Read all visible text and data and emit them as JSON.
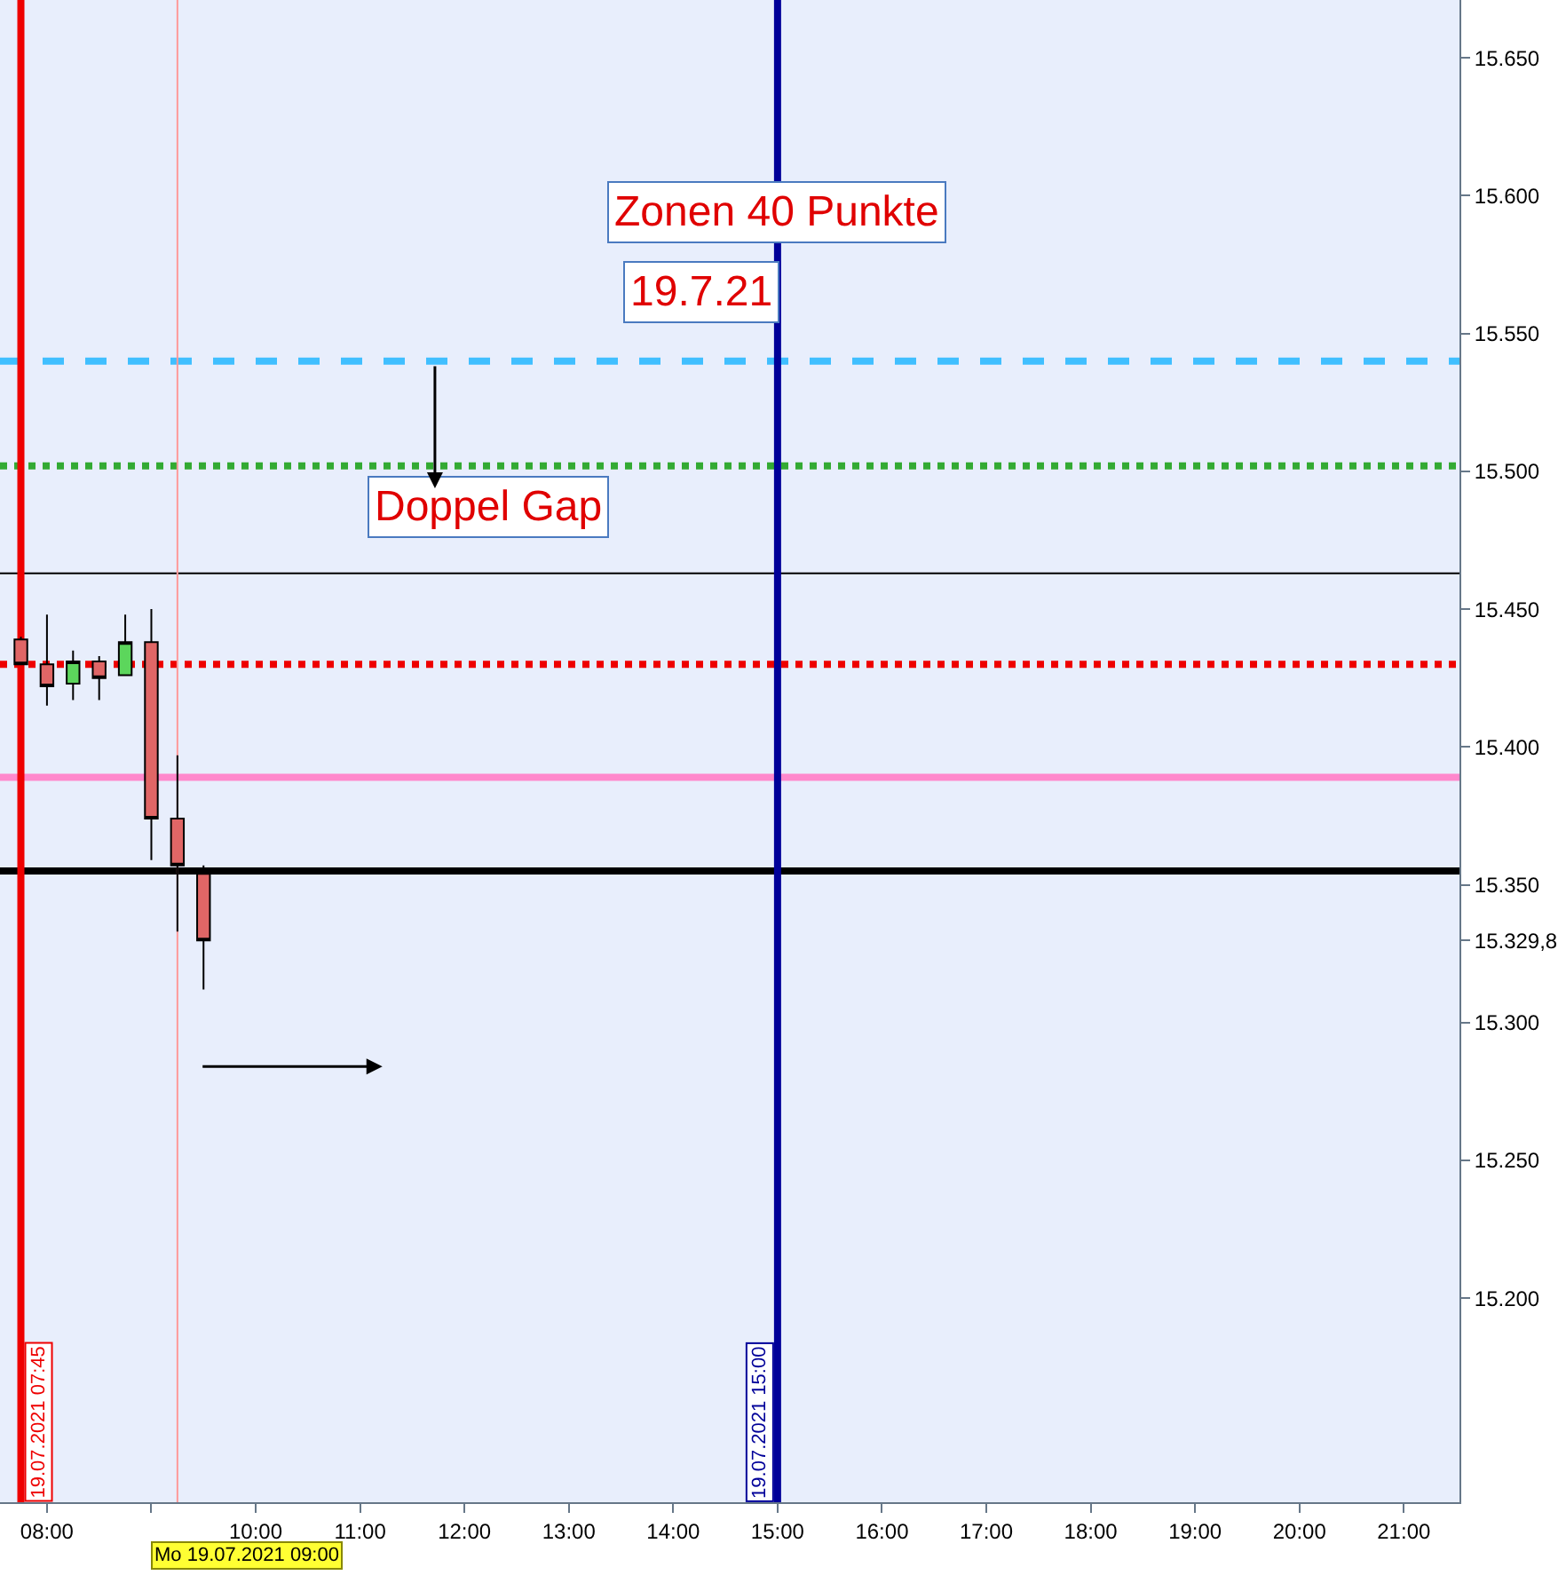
{
  "chart_data": {
    "type": "candlestick",
    "x": [
      "2021-07-19T07:45",
      "2021-07-19T08:00",
      "2021-07-19T08:15",
      "2021-07-19T08:30",
      "2021-07-19T08:45",
      "2021-07-19T09:00",
      "2021-07-19T09:15",
      "2021-07-19T09:30"
    ],
    "ohlc": [
      [
        15439,
        15440,
        15430,
        15430
      ],
      [
        15430,
        15448,
        15415,
        15422
      ],
      [
        15423,
        15435,
        15417,
        15431
      ],
      [
        15431,
        15433,
        15417,
        15425
      ],
      [
        15426,
        15448,
        15426,
        15438
      ],
      [
        15438,
        15450,
        15359,
        15374
      ],
      [
        15374,
        15397,
        15333,
        15357
      ],
      [
        15354,
        15357,
        15312,
        15329.8
      ]
    ],
    "colors": [
      "#e06666",
      "#e06666",
      "#5cd65c",
      "#e06666",
      "#5cd65c",
      "#e06666",
      "#e06666",
      "#e06666"
    ],
    "xlim": [
      "2021-07-19T07:33",
      "2021-07-19T21:32"
    ],
    "xticks": [
      {
        "value": "2021-07-19T08:00",
        "label": "08:00"
      },
      {
        "value": "2021-07-19T09:00",
        "label": null
      },
      {
        "value": "2021-07-19T10:00",
        "label": "10:00"
      },
      {
        "value": "2021-07-19T11:00",
        "label": "11:00"
      },
      {
        "value": "2021-07-19T12:00",
        "label": "12:00"
      },
      {
        "value": "2021-07-19T13:00",
        "label": "13:00"
      },
      {
        "value": "2021-07-19T14:00",
        "label": "14:00"
      },
      {
        "value": "2021-07-19T15:00",
        "label": "15:00"
      },
      {
        "value": "2021-07-19T16:00",
        "label": "16:00"
      },
      {
        "value": "2021-07-19T17:00",
        "label": "17:00"
      },
      {
        "value": "2021-07-19T18:00",
        "label": "18:00"
      },
      {
        "value": "2021-07-19T19:00",
        "label": "19:00"
      },
      {
        "value": "2021-07-19T20:00",
        "label": "20:00"
      },
      {
        "value": "2021-07-19T21:00",
        "label": "21:00"
      }
    ],
    "ylim": [
      15126,
      15671
    ],
    "yticks": [
      {
        "value": 15200,
        "label": "15.200"
      },
      {
        "value": 15250,
        "label": "15.250"
      },
      {
        "value": 15300,
        "label": "15.300"
      },
      {
        "value": 15329.8,
        "label": "15.329,8"
      },
      {
        "value": 15350,
        "label": "15.350"
      },
      {
        "value": 15400,
        "label": "15.400"
      },
      {
        "value": 15450,
        "label": "15.450"
      },
      {
        "value": 15500,
        "label": "15.500"
      },
      {
        "value": 15550,
        "label": "15.550"
      },
      {
        "value": 15600,
        "label": "15.600"
      },
      {
        "value": 15650,
        "label": "15.650"
      }
    ],
    "ref_lines": [
      {
        "axis": "y",
        "value": 15540,
        "color": "#40bfff",
        "line_style": "dashed"
      },
      {
        "axis": "y",
        "value": 15502,
        "color": "#33aa33",
        "line_style": "dotted"
      },
      {
        "axis": "y",
        "value": 15463,
        "color": "#000000",
        "line_style": "solid"
      },
      {
        "axis": "y",
        "value": 15430,
        "color": "#ee0000",
        "line_style": "dotted"
      },
      {
        "axis": "y",
        "value": 15389,
        "color": "#ff88cc",
        "line_style": "solid"
      },
      {
        "axis": "y",
        "value": 15355,
        "color": "#000000",
        "line_style": "solid"
      },
      {
        "axis": "x",
        "value": "2021-07-19T07:45",
        "color": "#ee0000",
        "line_style": "solid",
        "label": "19.07.2021 07:45"
      },
      {
        "axis": "x",
        "value": "2021-07-19T09:15",
        "color": "#ff9999",
        "line_style": "solid"
      },
      {
        "axis": "x",
        "value": "2021-07-19T15:00",
        "color": "#000099",
        "line_style": "solid",
        "label": "19.07.2021 15:00"
      }
    ],
    "annotations": [
      "Zonen 40 Punkte",
      "19.7.21",
      "Doppel Gap",
      "Mo 19.07.2021 09:00"
    ]
  }
}
